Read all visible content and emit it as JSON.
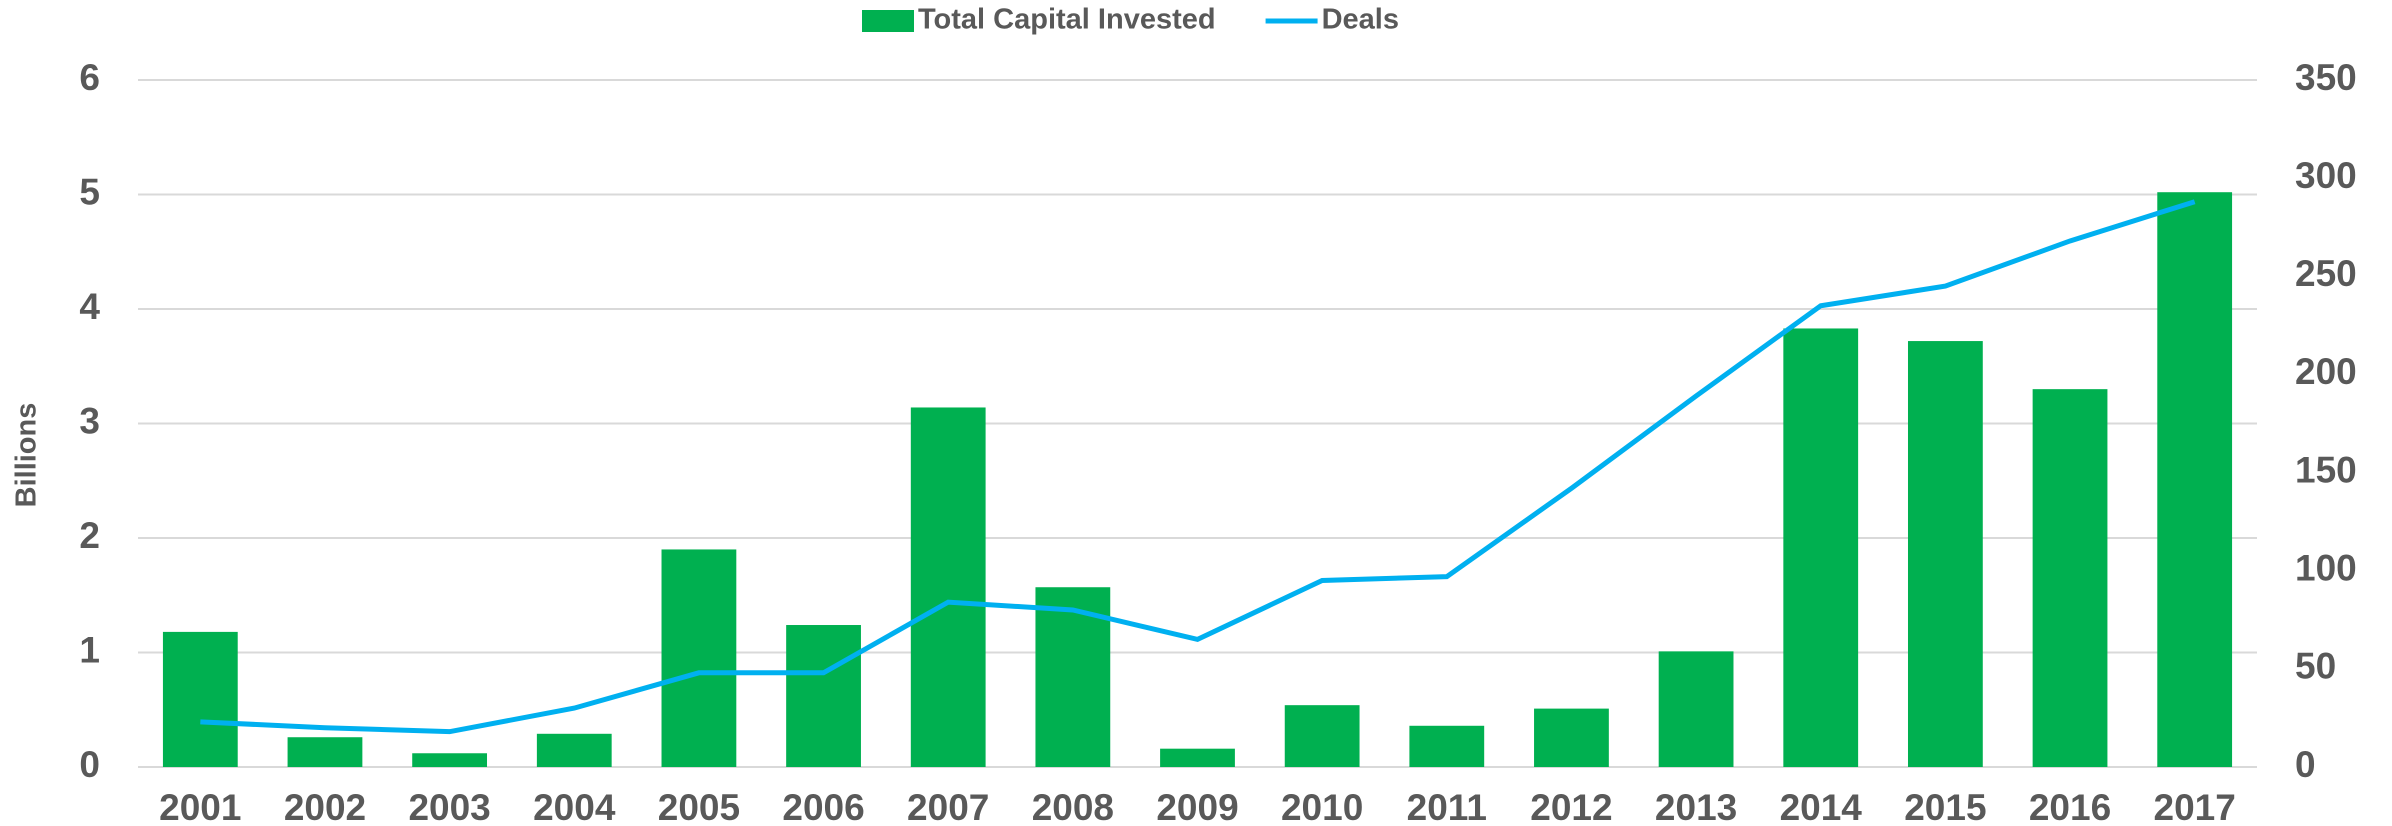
{
  "chart_data": {
    "type": "bar-line",
    "y_label": "Billions",
    "categories": [
      "2001",
      "2002",
      "2003",
      "2004",
      "2005",
      "2006",
      "2007",
      "2008",
      "2009",
      "2010",
      "2011",
      "2012",
      "2013",
      "2014",
      "2015",
      "2016",
      "2017"
    ],
    "series": [
      {
        "name": "Total Capital Invested",
        "type": "bar",
        "color": "#00b050",
        "axis": "y",
        "values": [
          1.18,
          0.26,
          0.12,
          0.29,
          1.9,
          1.24,
          3.14,
          1.57,
          0.16,
          0.54,
          0.36,
          0.51,
          1.01,
          3.83,
          3.72,
          3.3,
          5.02
        ]
      },
      {
        "name": "Deals",
        "type": "line",
        "color": "#00b0f0",
        "axis": "y2",
        "values": [
          23,
          20,
          18,
          30,
          48,
          48,
          84,
          80,
          65,
          95,
          97,
          142,
          189,
          235,
          245,
          268,
          288
        ]
      }
    ],
    "ylim": [
      0,
      6
    ],
    "yticks": [
      0,
      1,
      2,
      3,
      4,
      5,
      6
    ],
    "y2lim": [
      0,
      350
    ],
    "y2ticks": [
      0,
      50,
      100,
      150,
      200,
      250,
      300,
      350
    ],
    "grid": true,
    "legend": "top"
  }
}
